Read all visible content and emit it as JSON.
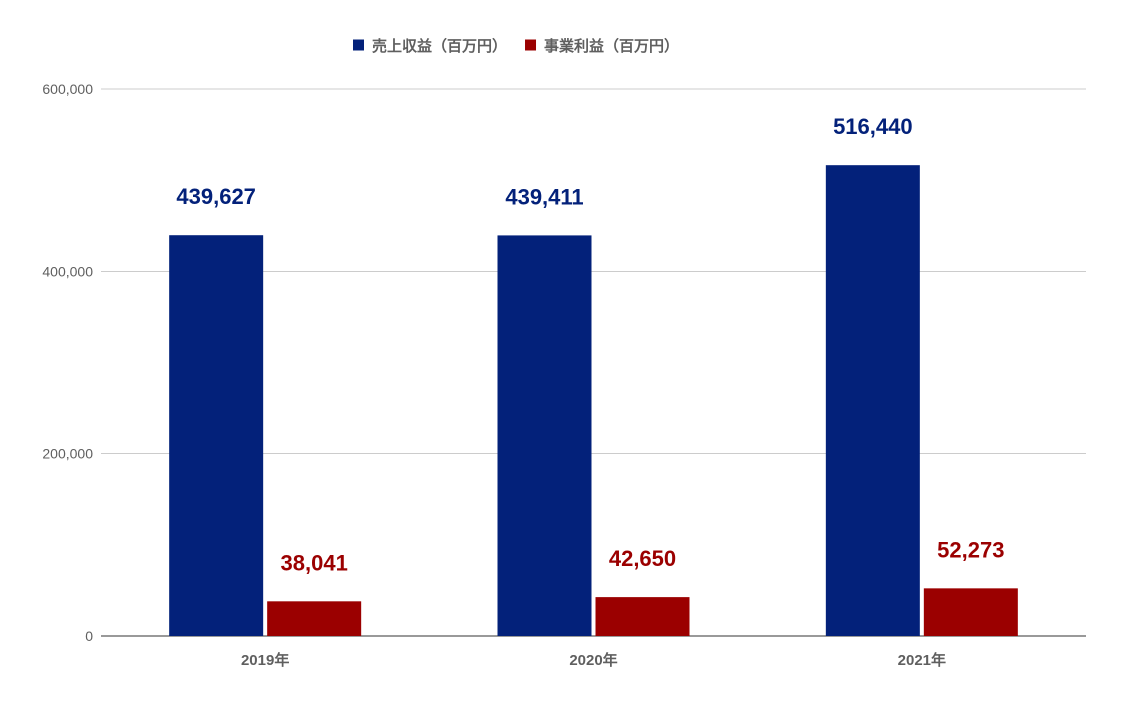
{
  "chart_data": {
    "type": "bar",
    "categories": [
      "2019年",
      "2020年",
      "2021年"
    ],
    "series": [
      {
        "name": "売上収益（百万円）",
        "values": [
          439627,
          439411,
          516440
        ],
        "labels": [
          "439,627",
          "439,411",
          "516,440"
        ],
        "color": "#03217a"
      },
      {
        "name": "事業利益（百万円）",
        "values": [
          38041,
          42650,
          52273
        ],
        "labels": [
          "38,041",
          "42,650",
          "52,273"
        ],
        "color": "#9b0000"
      }
    ],
    "ylim": [
      0,
      600000
    ],
    "yticks": [
      0,
      200000,
      400000,
      600000
    ],
    "ytick_labels": [
      "0",
      "200,000",
      "400,000",
      "600,000"
    ],
    "grid": true,
    "legend_position": "top-center",
    "title": "",
    "xlabel": "",
    "ylabel": ""
  },
  "colors": {
    "grid": "#cccccc",
    "axis": "#333333",
    "text": "#5f5f5f"
  }
}
